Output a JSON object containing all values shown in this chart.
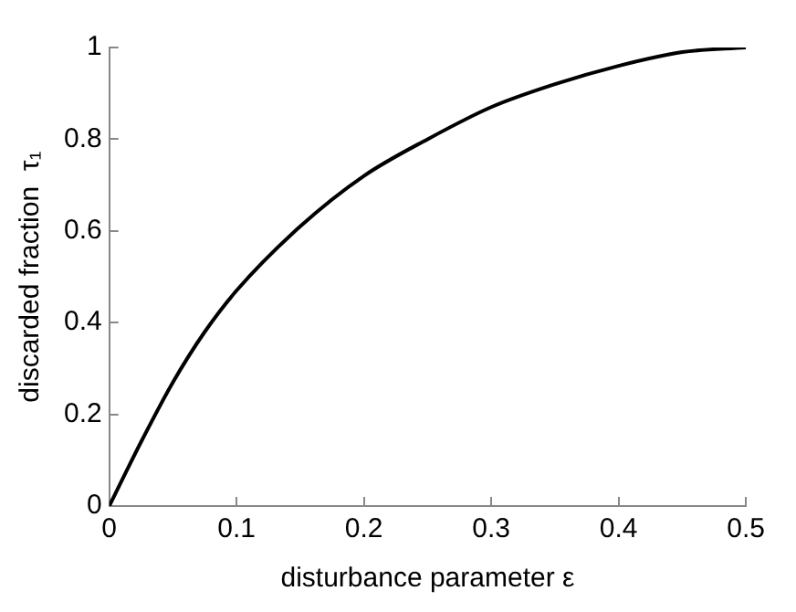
{
  "chart_data": {
    "type": "line",
    "xlabel": "disturbance parameter ε",
    "ylabel": "discarded fraction  τ₁",
    "x": [
      0,
      0.025,
      0.05,
      0.075,
      0.1,
      0.15,
      0.2,
      0.25,
      0.3,
      0.35,
      0.4,
      0.45,
      0.5
    ],
    "series": [
      {
        "color": "#000000",
        "values": [
          0,
          0.14,
          0.27,
          0.38,
          0.47,
          0.61,
          0.72,
          0.8,
          0.87,
          0.92,
          0.96,
          0.99,
          1
        ]
      }
    ],
    "xlim": [
      0,
      0.5
    ],
    "ylim": [
      0,
      1
    ],
    "xticks": [
      0,
      0.1,
      0.2,
      0.3,
      0.4,
      0.5
    ],
    "yticks": [
      0,
      0.2,
      0.4,
      0.6,
      0.8,
      1
    ],
    "grid": false,
    "legend": false,
    "marker": "none",
    "line_style": "solid"
  }
}
